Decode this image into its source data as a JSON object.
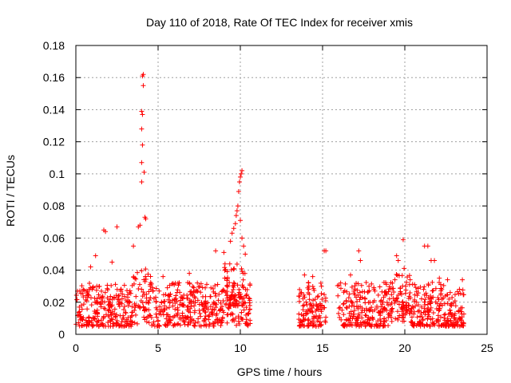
{
  "chart_data": {
    "type": "scatter",
    "title": "Day 110 of 2018, Rate Of TEC Index for receiver xmis",
    "xlabel": "GPS time / hours",
    "ylabel": "ROTI / TECUs",
    "xlim": [
      0,
      25
    ],
    "ylim": [
      0,
      0.18
    ],
    "x_ticks": [
      0,
      5,
      10,
      15,
      20,
      25
    ],
    "x_tick_labels": [
      "0",
      "5",
      "10",
      "15",
      "20",
      "25"
    ],
    "y_ticks": [
      0,
      0.02,
      0.04,
      0.06,
      0.08,
      0.1,
      0.12,
      0.14,
      0.16,
      0.18
    ],
    "y_tick_labels": [
      "0",
      "0.02",
      "0.04",
      "0.06",
      "0.08",
      "0.1",
      "0.12",
      "0.14",
      "0.16",
      "0.18"
    ],
    "grid": true,
    "marker": "+",
    "color": "#ff0000",
    "coverage_intervals_hours": [
      [
        0,
        10.6
      ],
      [
        13.5,
        15.2
      ],
      [
        15.9,
        23.6
      ]
    ],
    "typical_range": [
      0.005,
      0.03
    ],
    "notable_points": [
      {
        "x": 0.9,
        "y": 0.042
      },
      {
        "x": 1.2,
        "y": 0.049
      },
      {
        "x": 1.7,
        "y": 0.065
      },
      {
        "x": 1.8,
        "y": 0.064
      },
      {
        "x": 2.5,
        "y": 0.067
      },
      {
        "x": 2.2,
        "y": 0.045
      },
      {
        "x": 3.5,
        "y": 0.055
      },
      {
        "x": 3.8,
        "y": 0.067
      },
      {
        "x": 3.9,
        "y": 0.068
      },
      {
        "x": 4.0,
        "y": 0.095
      },
      {
        "x": 4.0,
        "y": 0.107
      },
      {
        "x": 4.05,
        "y": 0.118
      },
      {
        "x": 4.0,
        "y": 0.128
      },
      {
        "x": 4.05,
        "y": 0.137
      },
      {
        "x": 4.0,
        "y": 0.139
      },
      {
        "x": 4.1,
        "y": 0.155
      },
      {
        "x": 4.05,
        "y": 0.161
      },
      {
        "x": 4.1,
        "y": 0.162
      },
      {
        "x": 4.15,
        "y": 0.101
      },
      {
        "x": 4.2,
        "y": 0.073
      },
      {
        "x": 4.25,
        "y": 0.072
      },
      {
        "x": 5.3,
        "y": 0.036
      },
      {
        "x": 6.9,
        "y": 0.038
      },
      {
        "x": 8.5,
        "y": 0.052
      },
      {
        "x": 9.0,
        "y": 0.051
      },
      {
        "x": 9.4,
        "y": 0.058
      },
      {
        "x": 9.5,
        "y": 0.063
      },
      {
        "x": 9.6,
        "y": 0.066
      },
      {
        "x": 9.7,
        "y": 0.069
      },
      {
        "x": 9.75,
        "y": 0.074
      },
      {
        "x": 9.8,
        "y": 0.077
      },
      {
        "x": 9.85,
        "y": 0.08
      },
      {
        "x": 9.9,
        "y": 0.089
      },
      {
        "x": 9.95,
        "y": 0.095
      },
      {
        "x": 10.0,
        "y": 0.098
      },
      {
        "x": 10.05,
        "y": 0.1
      },
      {
        "x": 10.1,
        "y": 0.102
      },
      {
        "x": 10.0,
        "y": 0.071
      },
      {
        "x": 10.1,
        "y": 0.06
      },
      {
        "x": 10.2,
        "y": 0.055
      },
      {
        "x": 10.3,
        "y": 0.05
      },
      {
        "x": 13.9,
        "y": 0.037
      },
      {
        "x": 14.4,
        "y": 0.036
      },
      {
        "x": 15.1,
        "y": 0.052
      },
      {
        "x": 15.2,
        "y": 0.052
      },
      {
        "x": 16.1,
        "y": 0.032
      },
      {
        "x": 16.7,
        "y": 0.037
      },
      {
        "x": 17.2,
        "y": 0.052
      },
      {
        "x": 17.3,
        "y": 0.046
      },
      {
        "x": 19.5,
        "y": 0.049
      },
      {
        "x": 19.6,
        "y": 0.046
      },
      {
        "x": 19.9,
        "y": 0.059
      },
      {
        "x": 20.6,
        "y": 0.031
      },
      {
        "x": 21.2,
        "y": 0.055
      },
      {
        "x": 21.4,
        "y": 0.055
      },
      {
        "x": 21.6,
        "y": 0.046
      },
      {
        "x": 21.8,
        "y": 0.046
      },
      {
        "x": 22.1,
        "y": 0.035
      },
      {
        "x": 22.6,
        "y": 0.034
      },
      {
        "x": 23.5,
        "y": 0.034
      }
    ],
    "random_seed": 110
  }
}
